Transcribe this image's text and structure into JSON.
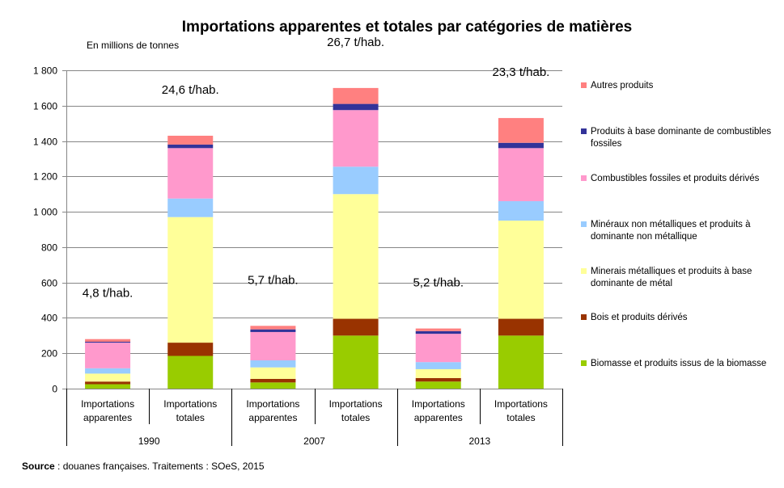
{
  "source": {
    "label": "Source",
    "text": " : douanes françaises. Traitements : SOeS, 2015"
  },
  "chart_data": {
    "type": "bar",
    "stacked": true,
    "title": "Importations apparentes et totales par catégories de matières",
    "unit": "En millions de tonnes",
    "ylim": [
      0,
      1800
    ],
    "yticks": [
      0,
      200,
      400,
      600,
      800,
      1000,
      1200,
      1400,
      1600,
      1800
    ],
    "ytick_labels": [
      "0",
      "200",
      "400",
      "600",
      "800",
      "1 000",
      "1 200",
      "1 400",
      "1 600",
      "1 800"
    ],
    "grid": true,
    "legend_position": "right",
    "groups": [
      "1990",
      "2007",
      "2013"
    ],
    "categories": [
      "Importations apparentes",
      "Importations totales",
      "Importations apparentes",
      "Importations totales",
      "Importations apparentes",
      "Importations totales"
    ],
    "category_group": [
      0,
      0,
      1,
      1,
      2,
      2
    ],
    "annotations": [
      "4,8 t/hab.",
      "24,6 t/hab.",
      "5,7 t/hab.",
      "26,7 t/hab.",
      "5,2 t/hab.",
      "23,3 t/hab."
    ],
    "series": [
      {
        "name": "Biomasse et produits issus de la biomasse",
        "color": "#99cc00",
        "values": [
          25,
          185,
          35,
          300,
          40,
          300
        ]
      },
      {
        "name": "Bois et produits dérivés",
        "color": "#993300",
        "values": [
          15,
          75,
          20,
          95,
          20,
          95
        ]
      },
      {
        "name": "Minerais métalliques et produits à base dominante de métal",
        "color": "#ffff99",
        "values": [
          45,
          710,
          65,
          705,
          50,
          555
        ]
      },
      {
        "name": "Minéraux non métalliques et produits à dominante non métallique",
        "color": "#99ccff",
        "values": [
          30,
          105,
          40,
          155,
          40,
          110
        ]
      },
      {
        "name": "Combustibles fossiles et produits dérivés",
        "color": "#ff99cc",
        "values": [
          145,
          285,
          160,
          320,
          160,
          300
        ]
      },
      {
        "name": "Produits à base dominante de combustibles fossiles",
        "color": "#333399",
        "values": [
          5,
          20,
          15,
          35,
          15,
          30
        ]
      },
      {
        "name": "Autres produits",
        "color": "#ff8080",
        "values": [
          15,
          50,
          20,
          90,
          15,
          140
        ]
      }
    ]
  }
}
